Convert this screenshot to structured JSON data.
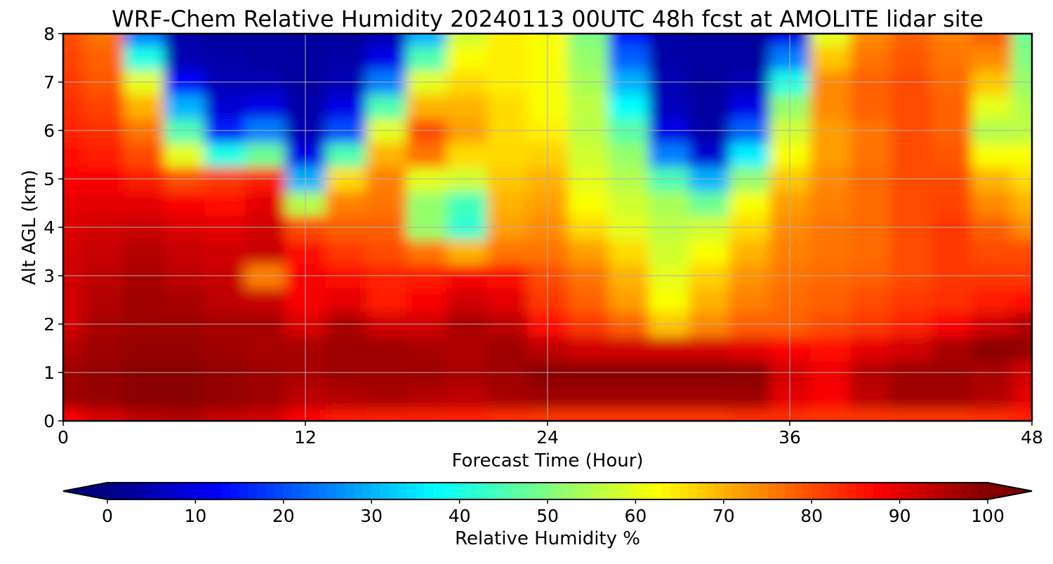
{
  "chart_data": {
    "type": "heatmap",
    "title": "WRF-Chem Relative Humidity 20240113 00UTC 48h fcst at AMOLITE lidar site",
    "xlabel": "Forecast Time (Hour)",
    "ylabel": "Alt AGL (km)",
    "xlim": [
      0,
      48
    ],
    "ylim": [
      0,
      8
    ],
    "x_ticks": [
      "0",
      "12",
      "24",
      "36",
      "48"
    ],
    "y_ticks": [
      "0",
      "1",
      "2",
      "3",
      "4",
      "5",
      "6",
      "7",
      "8"
    ],
    "grid": true,
    "colormap": "jet",
    "x": [
      0,
      2,
      4,
      6,
      8,
      10,
      12,
      14,
      16,
      18,
      20,
      22,
      24,
      26,
      28,
      30,
      32,
      34,
      36,
      38,
      40,
      42,
      44,
      46,
      48
    ],
    "y": [
      0,
      0.5,
      1,
      1.5,
      2,
      2.5,
      3,
      3.5,
      4,
      4.5,
      5,
      5.5,
      6,
      6.5,
      7,
      7.5,
      8
    ],
    "z": [
      [
        87,
        91,
        94,
        95,
        93,
        92,
        87,
        85,
        84,
        84,
        84,
        83,
        82,
        82,
        82,
        82,
        82,
        83,
        83,
        82,
        82,
        82,
        82,
        83,
        84
      ],
      [
        97,
        98,
        99,
        99,
        98,
        97,
        94,
        95,
        96,
        95,
        94,
        96,
        97,
        97,
        97,
        97,
        97,
        97,
        90,
        88,
        94,
        97,
        97,
        95,
        90
      ],
      [
        97,
        98,
        99,
        99,
        98,
        97,
        96,
        97,
        97,
        97,
        96,
        97,
        99,
        99,
        99,
        99,
        99,
        99,
        92,
        89,
        95,
        97,
        97,
        96,
        92
      ],
      [
        95,
        97,
        98,
        98,
        97,
        96,
        96,
        97,
        97,
        96,
        95,
        97,
        94,
        92,
        92,
        92,
        92,
        90,
        88,
        86,
        90,
        92,
        96,
        99,
        98
      ],
      [
        92,
        96,
        97,
        97,
        96,
        96,
        91,
        96,
        92,
        92,
        96,
        94,
        86,
        82,
        78,
        68,
        74,
        78,
        78,
        80,
        82,
        84,
        88,
        92,
        95
      ],
      [
        92,
        95,
        97,
        96,
        94,
        93,
        88,
        90,
        85,
        88,
        92,
        90,
        82,
        78,
        72,
        62,
        70,
        75,
        77,
        78,
        80,
        82,
        83,
        85,
        86
      ],
      [
        92,
        94,
        96,
        94,
        93,
        75,
        88,
        86,
        84,
        85,
        88,
        86,
        80,
        76,
        70,
        60,
        67,
        73,
        76,
        77,
        78,
        80,
        82,
        82,
        82
      ],
      [
        92,
        93,
        95,
        93,
        92,
        93,
        86,
        82,
        80,
        76,
        70,
        76,
        76,
        72,
        66,
        58,
        62,
        70,
        75,
        76,
        77,
        80,
        82,
        80,
        80
      ],
      [
        91,
        92,
        93,
        91,
        90,
        92,
        80,
        78,
        78,
        52,
        42,
        72,
        74,
        66,
        60,
        56,
        58,
        66,
        74,
        76,
        77,
        80,
        82,
        78,
        74
      ],
      [
        90,
        90,
        90,
        88,
        86,
        90,
        55,
        75,
        76,
        52,
        44,
        70,
        72,
        62,
        58,
        54,
        48,
        62,
        72,
        75,
        77,
        80,
        81,
        74,
        70
      ],
      [
        88,
        88,
        85,
        80,
        82,
        85,
        30,
        66,
        75,
        60,
        58,
        68,
        70,
        60,
        55,
        45,
        30,
        52,
        68,
        74,
        77,
        80,
        80,
        70,
        66
      ],
      [
        86,
        85,
        80,
        60,
        40,
        48,
        10,
        45,
        70,
        76,
        66,
        66,
        67,
        58,
        52,
        25,
        8,
        36,
        62,
        72,
        76,
        80,
        79,
        62,
        62
      ],
      [
        84,
        83,
        76,
        45,
        15,
        25,
        5,
        20,
        60,
        80,
        72,
        66,
        64,
        56,
        46,
        10,
        4,
        22,
        58,
        72,
        76,
        80,
        78,
        55,
        56
      ],
      [
        83,
        81,
        70,
        30,
        8,
        10,
        4,
        10,
        45,
        70,
        70,
        66,
        62,
        56,
        38,
        6,
        3,
        10,
        52,
        74,
        78,
        80,
        78,
        60,
        55
      ],
      [
        82,
        79,
        60,
        12,
        5,
        5,
        3,
        5,
        25,
        60,
        66,
        64,
        62,
        54,
        30,
        5,
        3,
        5,
        40,
        74,
        78,
        80,
        77,
        68,
        52
      ],
      [
        81,
        78,
        40,
        5,
        4,
        3,
        3,
        4,
        10,
        45,
        62,
        64,
        62,
        52,
        22,
        4,
        3,
        3,
        25,
        68,
        76,
        79,
        76,
        74,
        50
      ],
      [
        80,
        76,
        25,
        4,
        3,
        3,
        3,
        3,
        5,
        30,
        58,
        64,
        62,
        50,
        15,
        4,
        3,
        3,
        10,
        60,
        74,
        78,
        75,
        78,
        48
      ]
    ],
    "colorbar": {
      "label": "Relative Humidity %",
      "min": 0,
      "max": 100,
      "ticks": [
        "0",
        "10",
        "20",
        "30",
        "40",
        "50",
        "60",
        "70",
        "80",
        "90",
        "100"
      ],
      "extend": "both",
      "orientation": "horizontal"
    }
  }
}
